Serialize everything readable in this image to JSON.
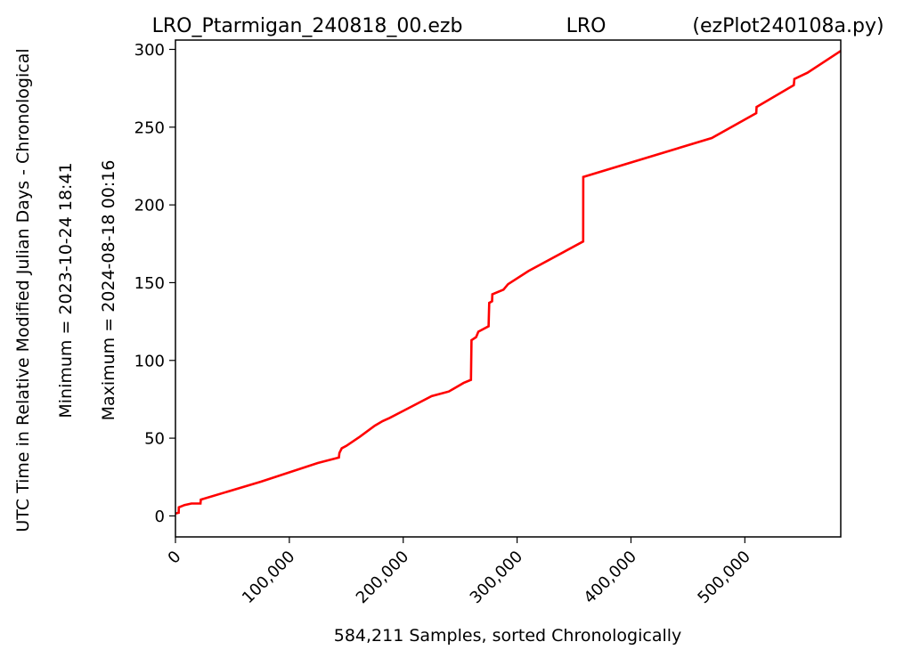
{
  "chart_data": {
    "type": "line",
    "title_left": "LRO_Ptarmigan_240818_00.ezb",
    "title_center": "LRO",
    "title_right": "(ezPlot240108a.py)",
    "ylabel": "UTC Time in Relative Modified Julian Days - Chronological",
    "ylabel_min": "Minimum = 2023-10-24   18:41",
    "ylabel_max": "Maximum = 2024-08-18   00:16",
    "xlabel": "584,211 Samples, sorted Chronologically",
    "xlim": [
      0,
      584211
    ],
    "ylim": [
      -13.5,
      306
    ],
    "x_ticks": [
      {
        "value": 0,
        "label": "0"
      },
      {
        "value": 100000,
        "label": "100,000"
      },
      {
        "value": 200000,
        "label": "200,000"
      },
      {
        "value": 300000,
        "label": "300,000"
      },
      {
        "value": 400000,
        "label": "400,000"
      },
      {
        "value": 500000,
        "label": "500,000"
      }
    ],
    "y_ticks": [
      {
        "value": 0,
        "label": "0"
      },
      {
        "value": 50,
        "label": "50"
      },
      {
        "value": 100,
        "label": "100"
      },
      {
        "value": 150,
        "label": "150"
      },
      {
        "value": 200,
        "label": "200"
      },
      {
        "value": 250,
        "label": "250"
      },
      {
        "value": 300,
        "label": "300"
      }
    ],
    "grid": false,
    "series": [
      {
        "color": "#ff0000",
        "x": [
          0,
          2800,
          3000,
          8000,
          14000,
          22000,
          22300,
          75000,
          125000,
          143500,
          144000,
          146000,
          150000,
          162000,
          175000,
          182000,
          188000,
          200000,
          225000,
          240000,
          253000,
          259500,
          260000,
          264000,
          266000,
          275000,
          275500,
          278000,
          278300,
          288000,
          292000,
          310000,
          358000,
          358100,
          471000,
          510000,
          510300,
          543000,
          543500,
          555000,
          584211
        ],
        "y": [
          1.5,
          2,
          5.5,
          7,
          8,
          8,
          10.5,
          22,
          34,
          37.5,
          40.5,
          43.5,
          45,
          51,
          58,
          61,
          63,
          67.5,
          77,
          80,
          85.5,
          87.5,
          113,
          115,
          118.5,
          122,
          137,
          138,
          142.5,
          145.5,
          149,
          157.5,
          176.5,
          218,
          243,
          259,
          263,
          277,
          281,
          285,
          299
        ]
      }
    ]
  }
}
